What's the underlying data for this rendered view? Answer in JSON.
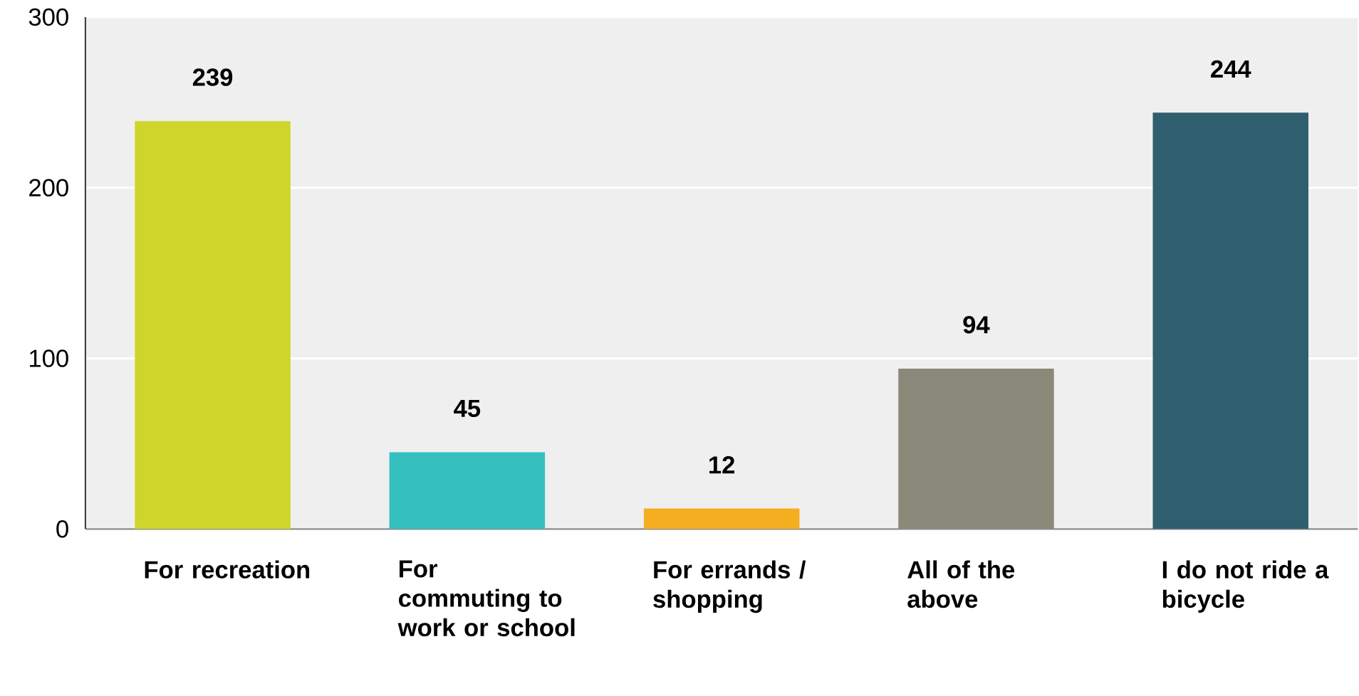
{
  "chart_data": {
    "type": "bar",
    "categories": [
      "For recreation",
      "For commuting to work or school",
      "For errands / shopping",
      "All of the above",
      "I do not ride a bicycle"
    ],
    "values": [
      239,
      45,
      12,
      94,
      244
    ],
    "colors": [
      "#cfd52a",
      "#35bfbf",
      "#f5ae1f",
      "#8a8a7a",
      "#2f5f6e"
    ],
    "ylim": [
      0,
      300
    ],
    "yticks": [
      0,
      100,
      200,
      300
    ],
    "grid": "y",
    "data_labels": true
  }
}
